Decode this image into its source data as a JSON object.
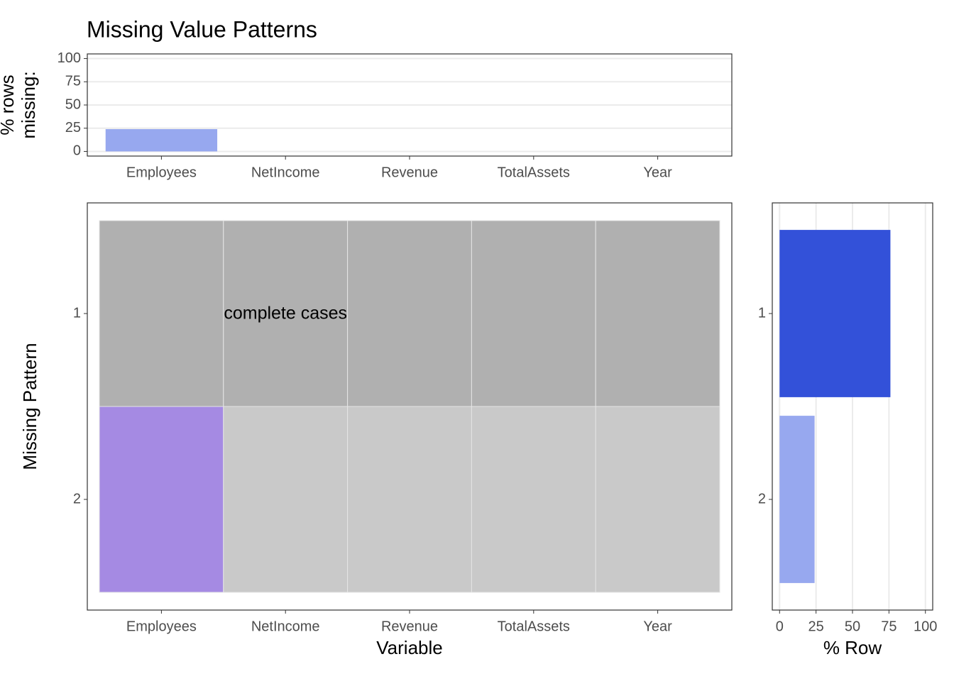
{
  "chart_data": [
    {
      "type": "bar",
      "title": "Missing Value Patterns",
      "y_label": [
        "% rows",
        "missing:"
      ],
      "categories": [
        "Employees",
        "NetIncome",
        "Revenue",
        "TotalAssets",
        "Year"
      ],
      "values": [
        24,
        0,
        0,
        0,
        0
      ],
      "color": "#97a8ef",
      "ylim": [
        -5,
        105
      ],
      "yticks": [
        0,
        25,
        50,
        75,
        100
      ],
      "grid": true
    },
    {
      "type": "heatmap",
      "x_label": "Variable",
      "y_label": "Missing Pattern",
      "categories": [
        "Employees",
        "NetIncome",
        "Revenue",
        "TotalAssets",
        "Year"
      ],
      "rows": [
        "1",
        "2"
      ],
      "values": [
        [
          0,
          0,
          0,
          0,
          0
        ],
        [
          1,
          0,
          0,
          0,
          0
        ]
      ],
      "colors": {
        "missing": "#a58ae3",
        "present": "#c9c9c9",
        "complete": "#b0b0b0"
      },
      "annotation": "complete cases"
    },
    {
      "type": "hbar",
      "x_label": "% Row",
      "categories": [
        "1",
        "2"
      ],
      "values": [
        76,
        24
      ],
      "colors": [
        "#3351d9",
        "#97a8ef"
      ],
      "xlim": [
        -5,
        105
      ],
      "xticks": [
        0,
        25,
        50,
        75,
        100
      ],
      "grid": true
    }
  ]
}
